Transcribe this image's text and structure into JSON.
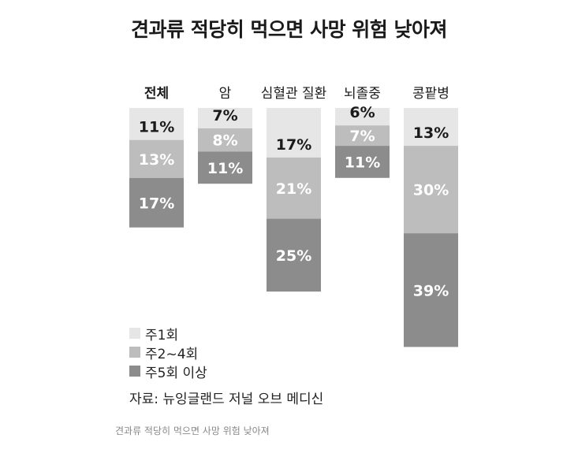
{
  "chart_data": {
    "type": "bar",
    "title": "견과류 적당히 먹으면 사망 위험 낮아져",
    "categories": [
      "전체",
      "암",
      "심혈관 질환",
      "뇌졸중",
      "콩팥병"
    ],
    "series": [
      {
        "name": "주1회",
        "values": [
          11,
          7,
          17,
          6,
          13
        ],
        "color": "#e6e6e6",
        "label_color": "#1a1a1a"
      },
      {
        "name": "주2~4회",
        "values": [
          13,
          8,
          21,
          7,
          30
        ],
        "color": "#bdbdbe",
        "label_color": "#ffffff"
      },
      {
        "name": "주5회 이상",
        "values": [
          17,
          11,
          25,
          11,
          39
        ],
        "color": "#8c8c8d",
        "label_color": "#ffffff"
      }
    ],
    "value_suffix": "%",
    "ylim": [
      0,
      100
    ],
    "grid": false,
    "legend_position": "bottom-left"
  },
  "source": "자료: 뉴잉글랜드 저널 오브 메디신",
  "caption": "견과류 적당히 먹으면 사망 위험 낮아져"
}
